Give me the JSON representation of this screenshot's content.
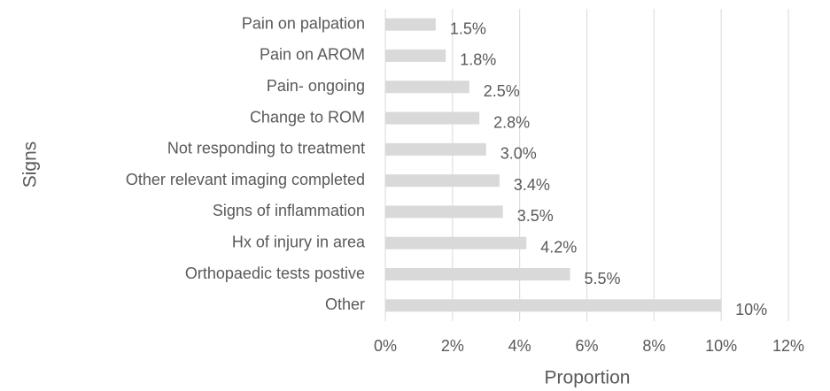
{
  "chart_data": {
    "type": "barh",
    "categories": [
      "Pain on palpation",
      "Pain on AROM",
      "Pain- ongoing",
      "Change to ROM",
      "Not responding to treatment",
      "Other relevant imaging completed",
      "Signs of inflammation",
      "Hx of injury in area",
      "Orthopaedic tests postive",
      "Other"
    ],
    "values": [
      1.5,
      1.8,
      2.5,
      2.8,
      3.0,
      3.4,
      3.5,
      4.2,
      5.5,
      10
    ],
    "value_labels": [
      "1.5%",
      "1.8%",
      "2.5%",
      "2.8%",
      "3.0%",
      "3.4%",
      "3.5%",
      "4.2%",
      "5.5%",
      "10%"
    ],
    "color": "#d9d9d9",
    "xlabel": "Proportion",
    "ylabel": "Signs",
    "xlim": [
      0,
      12
    ],
    "xticks": [
      {
        "value": 0,
        "label": "0%"
      },
      {
        "value": 2,
        "label": "2%"
      },
      {
        "value": 4,
        "label": "4%"
      },
      {
        "value": 6,
        "label": "6%"
      },
      {
        "value": 8,
        "label": "8%"
      },
      {
        "value": 10,
        "label": "10%"
      },
      {
        "value": 12,
        "label": "12%"
      }
    ],
    "grid": true
  }
}
